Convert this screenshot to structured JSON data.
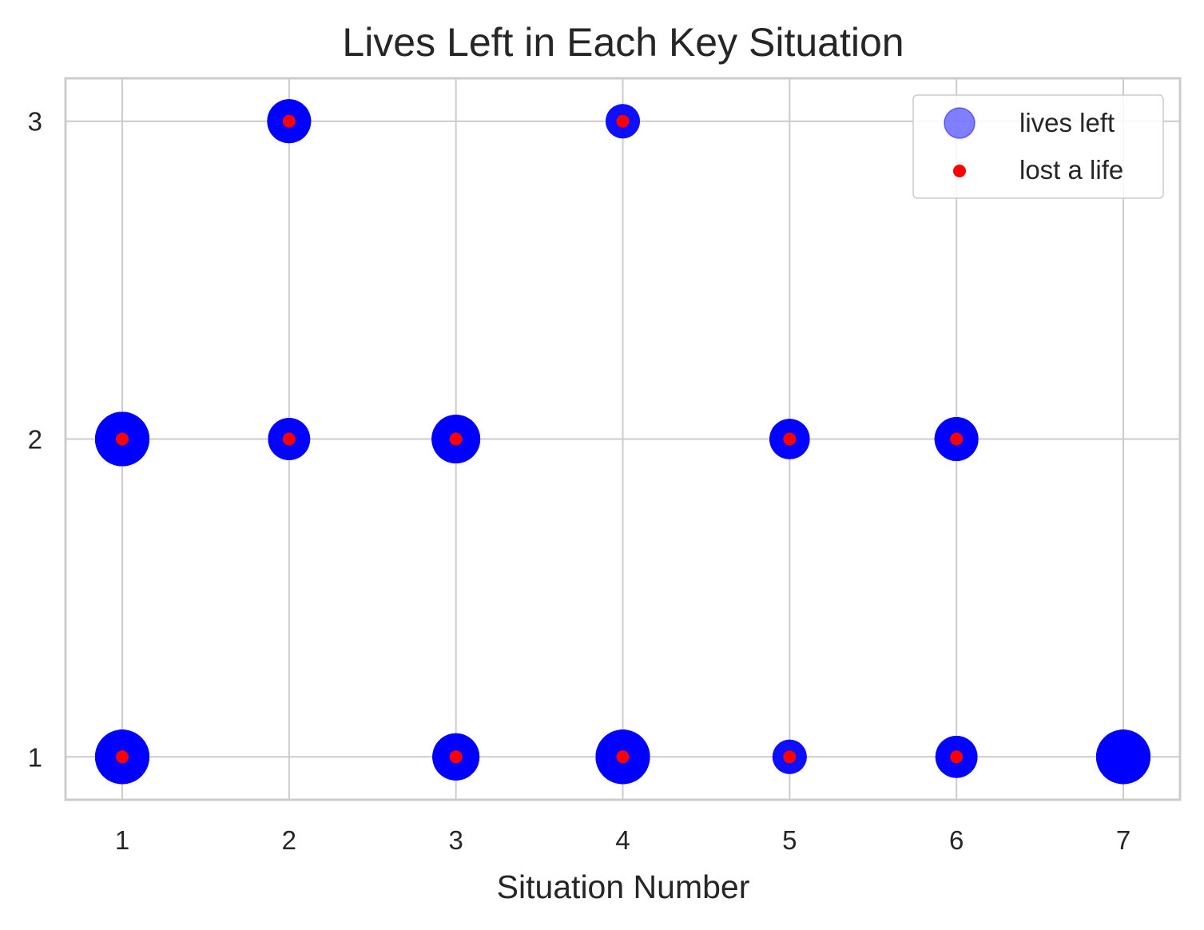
{
  "chart_data": {
    "type": "scatter",
    "title": "Lives Left in Each Key Situation",
    "xlabel": "Situation Number",
    "ylabel": "",
    "xlim": [
      0.66,
      7.34
    ],
    "ylim": [
      0.865,
      3.135
    ],
    "xticks": [
      "1",
      "2",
      "3",
      "4",
      "5",
      "6",
      "7"
    ],
    "yticks": [
      "1",
      "2",
      "3"
    ],
    "grid": true,
    "legend_position": "top-right",
    "series": [
      {
        "name": "lives left",
        "kind": "bubble",
        "color": "#0000ff",
        "points": [
          {
            "x": 1,
            "y": 1,
            "size": 1.0
          },
          {
            "x": 1,
            "y": 2,
            "size": 1.0
          },
          {
            "x": 2,
            "y": 2,
            "size": 0.6
          },
          {
            "x": 2,
            "y": 3,
            "size": 0.65
          },
          {
            "x": 3,
            "y": 1,
            "size": 0.75
          },
          {
            "x": 3,
            "y": 2,
            "size": 0.8
          },
          {
            "x": 4,
            "y": 1,
            "size": 1.0
          },
          {
            "x": 4,
            "y": 3,
            "size": 0.4
          },
          {
            "x": 5,
            "y": 1,
            "size": 0.4
          },
          {
            "x": 5,
            "y": 2,
            "size": 0.55
          },
          {
            "x": 6,
            "y": 1,
            "size": 0.6
          },
          {
            "x": 6,
            "y": 2,
            "size": 0.65
          },
          {
            "x": 7,
            "y": 1,
            "size": 1.0
          }
        ]
      },
      {
        "name": "lost a life",
        "kind": "dot",
        "color": "#ff0000",
        "points": [
          {
            "x": 1,
            "y": 1
          },
          {
            "x": 1,
            "y": 2
          },
          {
            "x": 2,
            "y": 2
          },
          {
            "x": 2,
            "y": 3
          },
          {
            "x": 3,
            "y": 1
          },
          {
            "x": 3,
            "y": 2
          },
          {
            "x": 4,
            "y": 1
          },
          {
            "x": 4,
            "y": 3
          },
          {
            "x": 5,
            "y": 1
          },
          {
            "x": 5,
            "y": 2
          },
          {
            "x": 6,
            "y": 1
          },
          {
            "x": 6,
            "y": 2
          }
        ]
      }
    ]
  }
}
